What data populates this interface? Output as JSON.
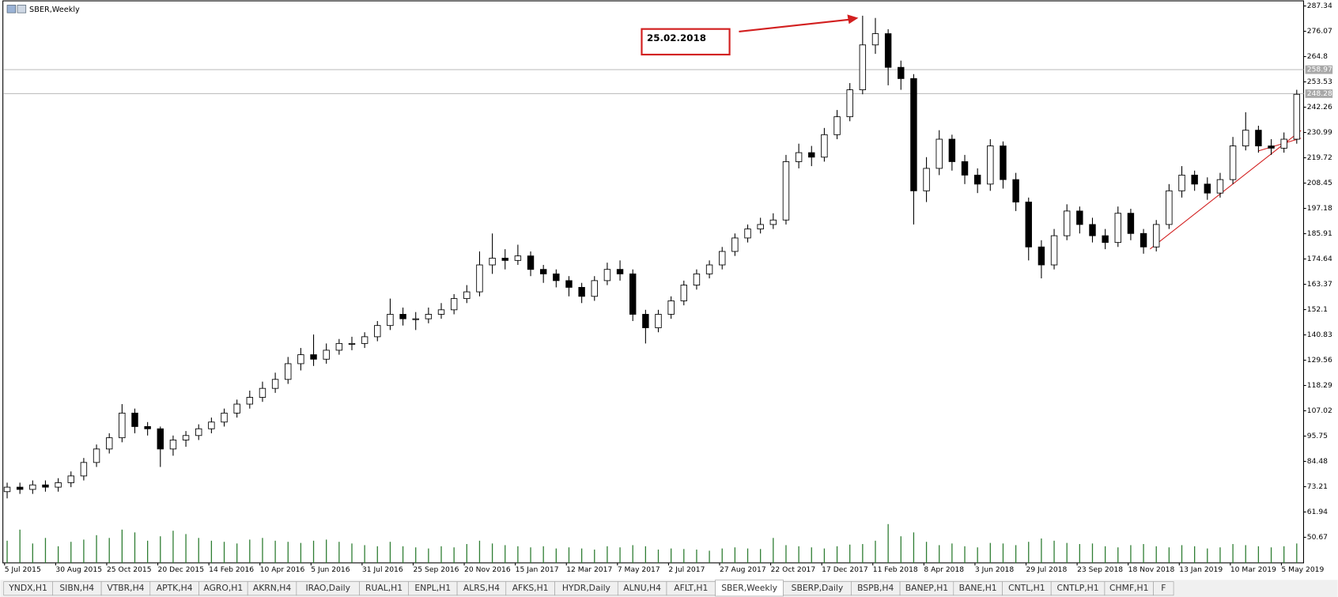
{
  "window_title": "SBER,Weekly",
  "chart_data": {
    "type": "candlestick",
    "annotation": "25.02.2018",
    "categories": [
      "5 Jul 2015",
      null,
      null,
      null,
      "30 Aug 2015",
      null,
      null,
      null,
      "25 Oct 2015",
      null,
      null,
      null,
      "20 Dec 2015",
      null,
      null,
      null,
      "14 Feb 2016",
      null,
      null,
      null,
      "10 Apr 2016",
      null,
      null,
      null,
      "5 Jun 2016",
      null,
      null,
      null,
      "31 Jul 2016",
      null,
      null,
      null,
      "25 Sep 2016",
      null,
      null,
      null,
      "20 Nov 2016",
      null,
      null,
      null,
      "15 Jan 2017",
      null,
      null,
      null,
      "12 Mar 2017",
      null,
      null,
      null,
      "7 May 2017",
      null,
      null,
      null,
      "2 Jul 2017",
      null,
      null,
      null,
      "27 Aug 2017",
      null,
      null,
      null,
      "22 Oct 2017",
      null,
      null,
      null,
      "17 Dec 2017",
      null,
      null,
      null,
      "11 Feb 2018",
      null,
      null,
      null,
      "8 Apr 2018",
      null,
      null,
      null,
      "3 Jun 2018",
      null,
      null,
      null,
      "29 Jul 2018",
      null,
      null,
      null,
      "23 Sep 2018",
      null,
      null,
      null,
      "18 Nov 2018",
      null,
      null,
      null,
      "13 Jan 2019",
      null,
      null,
      null,
      "10 Mar 2019",
      null,
      null,
      null,
      "5 May 2019",
      null
    ],
    "open": [
      71,
      73,
      72,
      74,
      73,
      75,
      78,
      84,
      90,
      95,
      106,
      100,
      99,
      90,
      94,
      96,
      99,
      102,
      106,
      110,
      113,
      117,
      121,
      128,
      132,
      130,
      134,
      137,
      137,
      140,
      145,
      150,
      148,
      148,
      150,
      152,
      157,
      160,
      172,
      175,
      174,
      176,
      170,
      168,
      165,
      162,
      158,
      165,
      170,
      168,
      150,
      144,
      150,
      156,
      163,
      168,
      172,
      178,
      184,
      188,
      190,
      192,
      218,
      222,
      220,
      230,
      238,
      250,
      270,
      275,
      260,
      255,
      205,
      215,
      228,
      218,
      212,
      208,
      225,
      210,
      200,
      180,
      172,
      185,
      196,
      190,
      185,
      182,
      195,
      186,
      180,
      190,
      205,
      212,
      208,
      204,
      210,
      225,
      232,
      225,
      224,
      228
    ],
    "high": [
      75,
      75,
      76,
      76,
      77,
      80,
      86,
      92,
      97,
      110,
      108,
      102,
      100,
      96,
      98,
      101,
      104,
      108,
      112,
      116,
      120,
      124,
      131,
      135,
      141,
      137,
      139,
      140,
      142,
      147,
      157,
      153,
      151,
      153,
      155,
      159,
      163,
      178,
      186,
      179,
      181,
      178,
      172,
      170,
      167,
      164,
      167,
      173,
      174,
      170,
      152,
      152,
      158,
      165,
      170,
      174,
      180,
      186,
      190,
      193,
      195,
      221,
      226,
      225,
      233,
      241,
      253,
      283,
      282,
      277,
      263,
      257,
      220,
      232,
      230,
      221,
      215,
      228,
      227,
      213,
      202,
      183,
      188,
      199,
      198,
      193,
      188,
      198,
      197,
      188,
      192,
      208,
      216,
      214,
      211,
      213,
      229,
      240,
      234,
      228,
      231,
      250
    ],
    "low": [
      68,
      70,
      70,
      71,
      71,
      73,
      76,
      82,
      88,
      93,
      97,
      96,
      82,
      87,
      91,
      94,
      97,
      100,
      104,
      108,
      111,
      115,
      119,
      125,
      127,
      128,
      132,
      134,
      135,
      138,
      143,
      145,
      143,
      146,
      148,
      150,
      155,
      158,
      168,
      170,
      172,
      167,
      164,
      162,
      158,
      155,
      156,
      163,
      165,
      147,
      137,
      142,
      148,
      154,
      161,
      166,
      170,
      176,
      182,
      186,
      188,
      190,
      215,
      216,
      218,
      228,
      236,
      248,
      266,
      252,
      250,
      190,
      200,
      212,
      214,
      208,
      204,
      205,
      206,
      196,
      174,
      166,
      170,
      183,
      186,
      182,
      179,
      180,
      183,
      177,
      178,
      188,
      202,
      205,
      201,
      202,
      208,
      223,
      222,
      221,
      222,
      226
    ],
    "close": [
      73,
      72,
      74,
      73,
      75,
      78,
      84,
      90,
      95,
      106,
      100,
      99,
      90,
      94,
      96,
      99,
      102,
      106,
      110,
      113,
      117,
      121,
      128,
      132,
      130,
      134,
      137,
      137,
      140,
      145,
      150,
      148,
      148,
      150,
      152,
      157,
      160,
      172,
      175,
      174,
      176,
      170,
      168,
      165,
      162,
      158,
      165,
      170,
      168,
      150,
      144,
      150,
      156,
      163,
      168,
      172,
      178,
      184,
      188,
      190,
      192,
      218,
      222,
      220,
      230,
      238,
      250,
      270,
      275,
      260,
      255,
      205,
      215,
      228,
      218,
      212,
      208,
      225,
      210,
      200,
      180,
      172,
      185,
      196,
      190,
      185,
      182,
      195,
      186,
      180,
      190,
      205,
      212,
      208,
      204,
      210,
      225,
      232,
      225,
      224,
      228,
      248
    ],
    "volume": [
      40,
      60,
      35,
      45,
      30,
      38,
      42,
      50,
      45,
      60,
      55,
      40,
      48,
      58,
      52,
      45,
      40,
      38,
      35,
      42,
      45,
      40,
      38,
      36,
      40,
      42,
      38,
      35,
      32,
      30,
      38,
      30,
      28,
      26,
      30,
      28,
      34,
      40,
      35,
      32,
      30,
      28,
      30,
      26,
      28,
      26,
      24,
      30,
      28,
      32,
      30,
      24,
      26,
      25,
      24,
      22,
      26,
      28,
      26,
      25,
      45,
      32,
      30,
      28,
      26,
      30,
      33,
      34,
      40,
      70,
      48,
      55,
      38,
      32,
      35,
      30,
      28,
      36,
      35,
      32,
      38,
      44,
      40,
      36,
      34,
      35,
      30,
      28,
      32,
      34,
      30,
      28,
      32,
      30,
      26,
      28,
      34,
      32,
      30,
      28,
      30,
      35
    ],
    "volume_lim": [
      0,
      100
    ],
    "ylim": [
      39.27,
      289.24
    ],
    "yticks": [
      287.34,
      276.07,
      264.8,
      253.53,
      242.26,
      230.99,
      219.72,
      208.45,
      197.18,
      185.91,
      174.64,
      163.37,
      152.1,
      140.83,
      129.56,
      118.29,
      107.02,
      95.75,
      84.48,
      73.21,
      61.94,
      50.67
    ],
    "price_lines": [
      258.97,
      248.28
    ],
    "up_color": "#ffffff",
    "down_color": "#000000",
    "volume_color": "#2e7d32"
  },
  "tabs": [
    "YNDX,H1",
    "SIBN,H4",
    "VTBR,H4",
    "APTK,H4",
    "AGRO,H1",
    "AKRN,H4",
    "IRAO,Daily",
    "RUAL,H1",
    "ENPL,H1",
    "ALRS,H4",
    "AFKS,H1",
    "HYDR,Daily",
    "ALNU,H4",
    "AFLT,H1",
    "SBER,Weekly",
    "SBERP,Daily",
    "BSPB,H4",
    "BANEP,H1",
    "BANE,H1",
    "CNTL,H1",
    "CNTLP,H1",
    "CHMF,H1",
    "F"
  ],
  "active_tab": 14
}
